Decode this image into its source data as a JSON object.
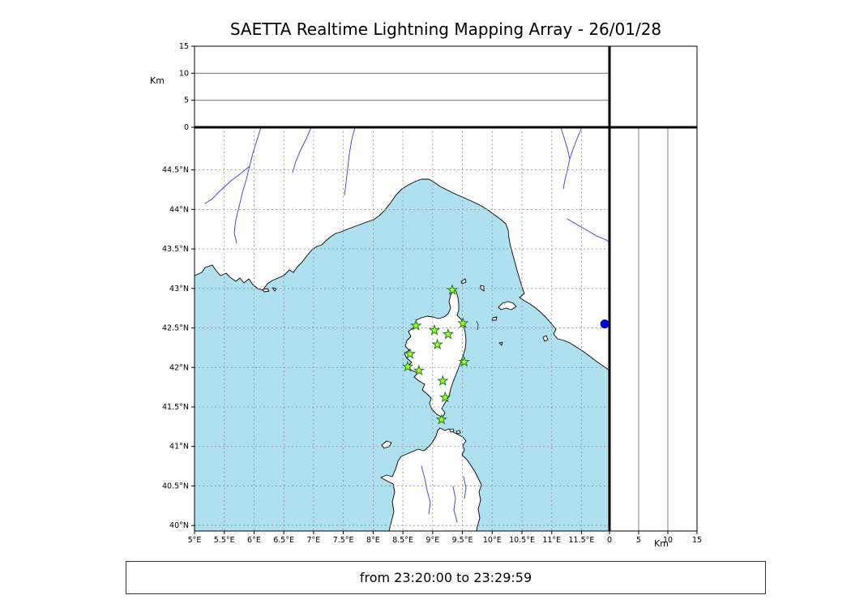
{
  "title": "SAETTA Realtime Lightning Mapping Array - 26/01/28",
  "footer": {
    "time_range": "from 23:20:00 to 23:29:59"
  },
  "colors": {
    "sea": "#afe0ef",
    "land": "#ffffff",
    "coast": "#000000",
    "river": "#3c3cd0",
    "grid": "#909090",
    "station_fill": "#adff2f",
    "station_edge": "#1f7a1f",
    "marker_blue": "#0000cc"
  },
  "chart_data": {
    "type": "scatter",
    "title": "SAETTA Realtime Lightning Mapping Array - 26/01/28",
    "subtitle": "from 23:20:00 to 23:29:59",
    "map_panel": {
      "grid": true,
      "lon_range": [
        5.0,
        11.97
      ],
      "lat_range": [
        39.93,
        45.04
      ],
      "lon_tick_values": [
        5,
        5.5,
        6,
        6.5,
        7,
        7.5,
        8,
        8.5,
        9,
        9.5,
        10,
        10.5,
        11,
        11.5
      ],
      "lon_tick_labels": [
        "5°E",
        "5.5°E",
        "6°E",
        "6.5°E",
        "7°E",
        "7.5°E",
        "8°E",
        "8.5°E",
        "9°E",
        "9.5°E",
        "10°E",
        "10.5°E",
        "11°E",
        "11.5°E"
      ],
      "lat_tick_values": [
        40,
        40.5,
        41,
        41.5,
        42,
        42.5,
        43,
        43.5,
        44,
        44.5
      ],
      "lat_tick_labels": [
        "40°N",
        "40.5°N",
        "41°N",
        "41.5°N",
        "42°N",
        "42.5°N",
        "43°N",
        "43.5°N",
        "44°N",
        "44.5°N"
      ]
    },
    "altitude_panels": {
      "unit_label": "Km",
      "range": [
        0,
        15
      ],
      "tick_values": [
        0,
        5,
        10,
        15
      ],
      "tick_labels": [
        "0",
        "5",
        "10",
        "15"
      ],
      "gridline_values": [
        5,
        10
      ]
    },
    "stations": [
      {
        "lon": 9.33,
        "lat": 42.98
      },
      {
        "lon": 8.72,
        "lat": 42.53
      },
      {
        "lon": 9.03,
        "lat": 42.47
      },
      {
        "lon": 9.26,
        "lat": 42.42
      },
      {
        "lon": 9.51,
        "lat": 42.56
      },
      {
        "lon": 9.08,
        "lat": 42.29
      },
      {
        "lon": 8.62,
        "lat": 42.17
      },
      {
        "lon": 8.58,
        "lat": 42.01
      },
      {
        "lon": 8.77,
        "lat": 41.96
      },
      {
        "lon": 9.53,
        "lat": 42.07
      },
      {
        "lon": 9.17,
        "lat": 41.83
      },
      {
        "lon": 9.21,
        "lat": 41.62
      },
      {
        "lon": 9.15,
        "lat": 41.34
      }
    ],
    "markers": [
      {
        "name": "blue-dot",
        "lon": 11.89,
        "lat": 42.55
      }
    ],
    "lightning_sources": []
  }
}
